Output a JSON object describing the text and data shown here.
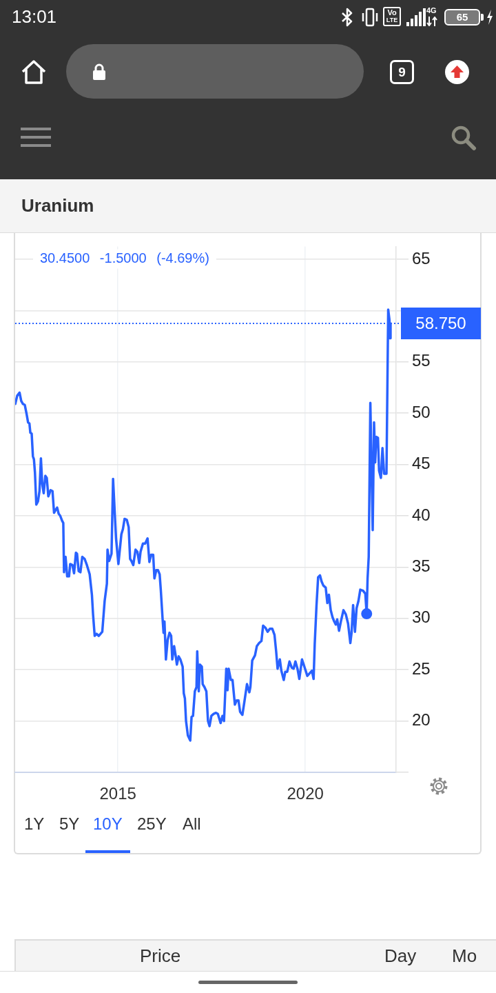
{
  "chart_data": {
    "type": "line",
    "title": "Uranium",
    "series": [
      {
        "color": "#2962ff",
        "x": [
          "2012-04-06",
          "2012-04-25",
          "2012-05-18",
          "2012-06-03",
          "2012-06-20",
          "2012-07-08",
          "2012-07-24",
          "2012-08-09",
          "2012-08-22",
          "2012-08-31",
          "2012-09-13",
          "2012-09-25",
          "2012-10-05",
          "2012-10-15",
          "2012-10-28",
          "2012-11-13",
          "2012-11-28",
          "2012-12-12",
          "2012-12-25",
          "2013-01-08",
          "2013-01-24",
          "2013-02-07",
          "2013-02-22",
          "2013-03-06",
          "2013-03-16",
          "2013-04-04",
          "2013-04-19",
          "2013-04-30",
          "2013-05-19",
          "2013-06-03",
          "2013-06-18",
          "2013-07-07",
          "2013-07-18",
          "2013-07-25",
          "2013-08-09",
          "2013-08-25",
          "2013-09-12",
          "2013-09-23",
          "2013-10-15",
          "2013-10-31",
          "2013-11-18",
          "2013-11-29",
          "2013-12-15",
          "2014-01-01",
          "2014-01-19",
          "2014-02-11",
          "2014-03-05",
          "2014-04-01",
          "2014-04-23",
          "2014-05-04",
          "2014-05-20",
          "2014-06-07",
          "2014-06-29",
          "2014-08-02",
          "2014-08-25",
          "2014-09-16",
          "2014-09-22",
          "2014-10-08",
          "2014-10-31",
          "2014-11-15",
          "2014-12-03",
          "2014-12-14",
          "2015-01-06",
          "2015-01-16",
          "2015-02-04",
          "2015-02-19",
          "2015-03-07",
          "2015-03-29",
          "2015-04-16",
          "2015-04-30",
          "2015-05-13",
          "2015-05-31",
          "2015-06-22",
          "2015-07-10",
          "2015-07-28",
          "2015-08-10",
          "2015-09-02",
          "2015-09-24",
          "2015-10-17",
          "2015-11-04",
          "2015-11-21",
          "2015-12-11",
          "2015-12-23",
          "2016-01-10",
          "2016-01-27",
          "2016-02-12",
          "2016-02-23",
          "2016-03-12",
          "2016-03-21",
          "2016-03-30",
          "2016-04-13",
          "2016-04-30",
          "2016-05-18",
          "2016-06-03",
          "2016-06-14",
          "2016-07-02",
          "2016-07-18",
          "2016-07-29",
          "2016-08-15",
          "2016-09-01",
          "2016-09-23",
          "2016-10-04",
          "2016-10-15",
          "2016-10-26",
          "2016-11-13",
          "2016-12-06",
          "2016-12-19",
          "2017-01-02",
          "2017-01-20",
          "2017-02-05",
          "2017-02-12",
          "2017-02-27",
          "2017-03-10",
          "2017-03-29",
          "2017-04-06",
          "2017-04-24",
          "2017-05-12",
          "2017-05-28",
          "2017-06-12",
          "2017-06-30",
          "2017-07-23",
          "2017-08-14",
          "2017-09-01",
          "2017-09-28",
          "2017-10-16",
          "2017-10-31",
          "2017-11-22",
          "2017-12-04",
          "2017-12-15",
          "2018-01-06",
          "2018-01-22",
          "2018-02-14",
          "2018-03-03",
          "2018-03-21",
          "2018-04-06",
          "2018-04-28",
          "2018-05-21",
          "2018-06-12",
          "2018-07-05",
          "2018-07-15",
          "2018-08-02",
          "2018-08-29",
          "2018-09-16",
          "2018-10-08",
          "2018-10-31",
          "2018-11-16",
          "2018-12-08",
          "2018-12-30",
          "2019-01-22",
          "2019-02-13",
          "2019-03-07",
          "2019-03-23",
          "2019-04-06",
          "2019-04-28",
          "2019-05-13",
          "2019-06-05",
          "2019-06-20",
          "2019-07-09",
          "2019-07-31",
          "2019-08-22",
          "2019-09-09",
          "2019-09-27",
          "2019-10-17",
          "2019-11-04",
          "2019-11-30",
          "2019-12-23",
          "2020-01-21",
          "2020-02-17",
          "2020-03-06",
          "2020-03-22",
          "2020-04-02",
          "2020-04-19",
          "2020-05-05",
          "2020-05-23",
          "2020-06-08",
          "2020-06-25",
          "2020-07-18",
          "2020-08-03",
          "2020-08-18",
          "2020-09-05",
          "2020-09-23",
          "2020-10-09",
          "2020-10-24",
          "2020-11-07",
          "2020-11-25",
          "2020-12-15",
          "2021-01-07",
          "2021-01-30",
          "2021-02-21",
          "2021-03-15",
          "2021-03-27",
          "2021-04-11",
          "2021-04-29",
          "2021-05-15",
          "2021-06-02",
          "2021-06-20",
          "2021-07-17",
          "2021-08-08",
          "2021-08-21",
          "2021-08-30",
          "2021-09-10",
          "2021-09-26",
          "2021-10-19",
          "2021-11-01",
          "2021-11-12",
          "2021-11-23",
          "2021-12-09",
          "2021-12-20",
          "2022-01-07",
          "2022-01-22",
          "2022-02-07",
          "2022-03-02",
          "2022-03-19",
          "2022-03-31",
          "2022-04-06",
          "2022-04-11"
        ],
        "values": [
          50.9,
          51.7,
          52.0,
          51.2,
          50.9,
          50.8,
          50.0,
          49.1,
          49.0,
          48.1,
          48.0,
          45.8,
          45.5,
          44.2,
          41.1,
          41.4,
          42.4,
          45.6,
          43.1,
          42.2,
          43.9,
          43.7,
          41.9,
          42.2,
          42.5,
          42.4,
          40.3,
          40.5,
          40.8,
          40.2,
          40.0,
          39.5,
          39.3,
          34.5,
          36.0,
          34.1,
          34.1,
          35.3,
          35.2,
          34.4,
          36.4,
          36.3,
          34.6,
          34.5,
          36.0,
          35.8,
          35.2,
          34.3,
          32.3,
          30.4,
          28.3,
          28.5,
          28.3,
          28.7,
          31.7,
          33.4,
          36.7,
          35.6,
          36.3,
          43.6,
          40.0,
          37.8,
          35.3,
          36.3,
          38.2,
          38.7,
          39.7,
          39.6,
          38.9,
          35.8,
          35.6,
          35.2,
          36.7,
          36.5,
          35.4,
          36.5,
          37.3,
          37.3,
          37.8,
          35.5,
          36.2,
          36.2,
          33.9,
          34.7,
          34.7,
          34.3,
          32.8,
          29.9,
          28.6,
          29.7,
          26.0,
          27.9,
          28.6,
          28.3,
          26.0,
          27.3,
          26.3,
          25.5,
          26.3,
          26.0,
          25.3,
          22.7,
          22.2,
          20.0,
          18.6,
          18.1,
          20.4,
          20.5,
          22.9,
          23.3,
          26.8,
          22.9,
          25.5,
          25.3,
          23.6,
          23.3,
          22.9,
          20.0,
          19.5,
          20.5,
          20.7,
          20.8,
          20.7,
          19.8,
          20.5,
          20.0,
          25.1,
          23.0,
          25.1,
          24.0,
          24.0,
          21.6,
          22.0,
          22.0,
          20.9,
          20.6,
          22.1,
          23.6,
          22.8,
          23.3,
          25.9,
          26.4,
          27.3,
          27.6,
          27.8,
          29.3,
          29.1,
          28.7,
          29.0,
          29.0,
          28.4,
          26.8,
          25.1,
          26.0,
          24.9,
          24.0,
          24.8,
          24.8,
          25.8,
          25.2,
          25.1,
          25.8,
          25.1,
          24.1,
          26.0,
          25.3,
          24.4,
          24.7,
          24.9,
          24.1,
          27.5,
          31.2,
          34.0,
          34.2,
          33.6,
          33.2,
          33.0,
          31.5,
          32.3,
          30.8,
          30.1,
          29.7,
          29.4,
          29.9,
          28.8,
          29.8,
          30.8,
          30.4,
          29.5,
          27.6,
          28.6,
          31.3,
          28.7,
          31.0,
          31.7,
          32.8,
          32.7,
          32.4,
          30.45,
          33.9,
          36.0,
          51.0,
          38.6,
          49.1,
          45.2,
          47.7,
          47.6,
          44.4,
          43.7,
          46.6,
          44.1,
          44.1,
          60.1,
          59.1,
          57.3,
          58.75
        ]
      },
      {
        "type": "scatter",
        "color": "#2962ff",
        "x": [
          "2021-08-21"
        ],
        "values": [
          30.45
        ]
      }
    ],
    "xlim": [
      "2012-04-05",
      "2022-06-04"
    ],
    "xticks": [
      {
        "value": "2015",
        "label": "2015"
      },
      {
        "value": "2020",
        "label": "2020"
      }
    ],
    "ylim": [
      15,
      66.25
    ],
    "yticks": [
      {
        "value": 15,
        "label": null
      },
      20,
      25,
      30,
      35,
      40,
      45,
      50,
      55,
      {
        "value": 60,
        "label": null
      },
      65
    ],
    "grid": true,
    "ref_lines": [
      {
        "axis": "y",
        "value": 58.75,
        "label": "58.750",
        "color": "#2962ff",
        "line_style": "dotted"
      }
    ],
    "annotations": [
      "30.4500 -1.5000 (-4.69%)",
      "13:01",
      "Vo",
      "LTE",
      "4G",
      "65",
      "9",
      "1Y",
      "5Y",
      "10Y",
      "25Y",
      "All",
      "Price",
      "Day",
      "Mo"
    ]
  }
}
